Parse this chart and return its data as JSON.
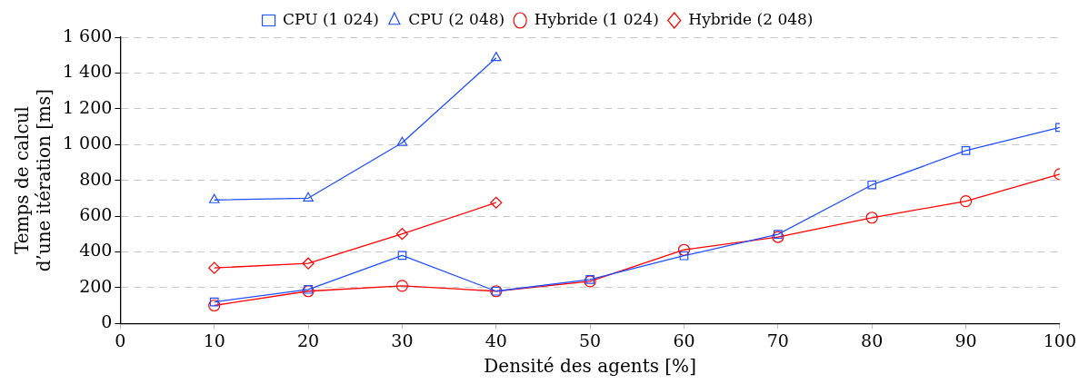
{
  "chart_data": {
    "type": "line",
    "xlabel": "Densité des agents [%]",
    "ylabel": "Temps de calcul\nd’une itération [ms]",
    "x": [
      10,
      20,
      30,
      40,
      50,
      60,
      70,
      80,
      90,
      100
    ],
    "series": [
      {
        "name": "CPU (1 024)",
        "color": "#1f4fff",
        "marker": "square",
        "values": [
          120,
          190,
          380,
          180,
          245,
          378,
          498,
          774,
          966,
          1096
        ]
      },
      {
        "name": "CPU (2 048)",
        "color": "#1f4fff",
        "marker": "triangle",
        "values": [
          690,
          700,
          1010,
          1485,
          null,
          null,
          null,
          null,
          null,
          null
        ]
      },
      {
        "name": "Hybride (1 024)",
        "color": "#ff0000",
        "marker": "circle",
        "values": [
          100,
          180,
          210,
          180,
          235,
          411,
          483,
          591,
          683,
          834
        ]
      },
      {
        "name": "Hybride (2 048)",
        "color": "#ff0000",
        "marker": "diamond",
        "values": [
          310,
          335,
          500,
          675,
          null,
          null,
          null,
          null,
          null,
          null
        ]
      }
    ],
    "xlim": [
      0,
      100
    ],
    "xticks": [
      0,
      10,
      20,
      30,
      40,
      50,
      60,
      70,
      80,
      90,
      100
    ],
    "ylim": [
      0,
      1600
    ],
    "yticks": [
      0,
      200,
      400,
      600,
      800,
      {
        "value": 1000,
        "label": "1 000"
      },
      {
        "value": 1200,
        "label": "1 200"
      },
      {
        "value": 1400,
        "label": "1 400"
      },
      {
        "value": 1600,
        "label": "1 600"
      }
    ],
    "grid": "y",
    "legend": "top",
    "line_style": "solid"
  }
}
